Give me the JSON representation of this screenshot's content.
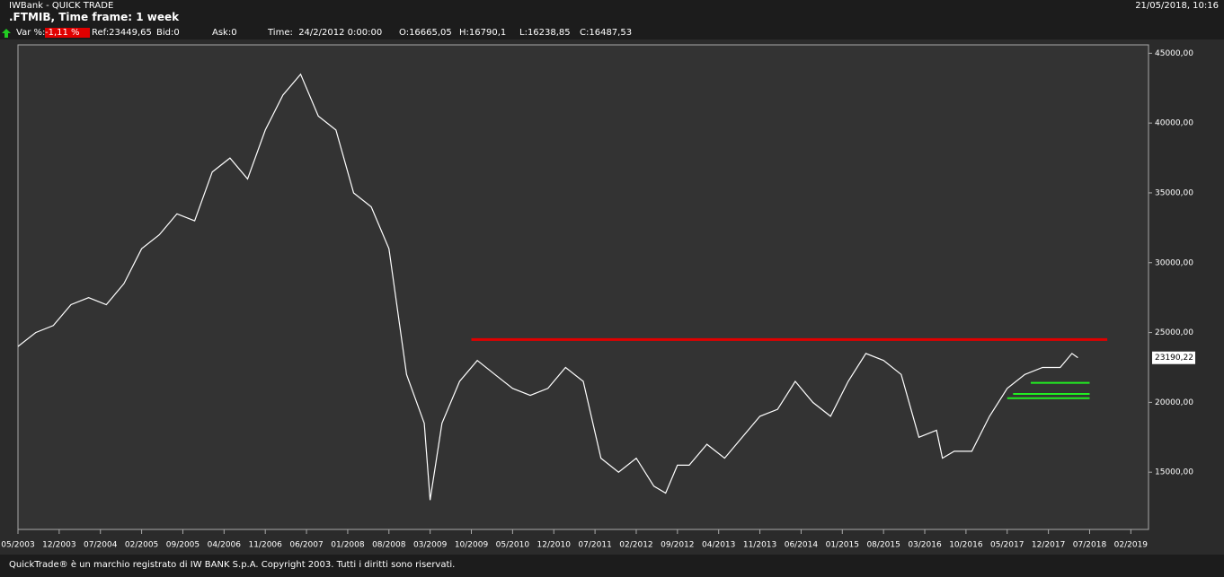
{
  "header": {
    "app": "IWBank - QUICK TRADE",
    "symbol": ".FTMIB, Time frame: 1 week",
    "datetime": "21/05/2018, 10:16",
    "info": [
      "Var %:",
      "-1,11 %",
      "Ref:23449,65",
      "Bid:0",
      "Ask:0",
      "Time:  24/2/2012 0:00:00",
      "O:16665,05",
      "H:16790,1",
      "L:16238,85",
      "C:16487,53"
    ]
  },
  "footer": "QuickTrade® è un marchio registrato di IW BANK S.p.A. Copyright 2003. Tutti i diritti sono riservati.",
  "chart_data": {
    "type": "line",
    "color": "#ffffff",
    "x": [
      "05/2003",
      "08/2003",
      "11/2003",
      "02/2004",
      "05/2004",
      "08/2004",
      "11/2004",
      "02/2005",
      "05/2005",
      "08/2005",
      "11/2005",
      "02/2006",
      "05/2006",
      "08/2006",
      "11/2006",
      "02/2007",
      "05/2007",
      "08/2007",
      "11/2007",
      "02/2008",
      "05/2008",
      "08/2008",
      "11/2008",
      "02/2009",
      "03/2009",
      "05/2009",
      "08/2009",
      "11/2009",
      "02/2010",
      "05/2010",
      "08/2010",
      "11/2010",
      "02/2011",
      "05/2011",
      "08/2011",
      "11/2011",
      "02/2012",
      "05/2012",
      "07/2012",
      "09/2012",
      "11/2012",
      "02/2013",
      "05/2013",
      "08/2013",
      "11/2013",
      "02/2014",
      "05/2014",
      "08/2014",
      "11/2014",
      "02/2015",
      "05/2015",
      "08/2015",
      "11/2015",
      "02/2016",
      "05/2016",
      "06/2016",
      "08/2016",
      "11/2016",
      "02/2017",
      "05/2017",
      "08/2017",
      "11/2017",
      "02/2018",
      "04/2018",
      "05/2018"
    ],
    "values": [
      24000,
      25000,
      25500,
      27000,
      27500,
      27000,
      28500,
      31000,
      32000,
      33500,
      33000,
      36500,
      37500,
      36000,
      39500,
      42000,
      43500,
      40500,
      39500,
      35000,
      34000,
      31000,
      22000,
      18500,
      13000,
      18500,
      21500,
      23000,
      22000,
      21000,
      20500,
      21000,
      22500,
      21500,
      16000,
      15000,
      16000,
      14000,
      13500,
      15500,
      15500,
      17000,
      16000,
      17500,
      19000,
      19500,
      21500,
      20000,
      19000,
      21500,
      23500,
      23000,
      22000,
      17500,
      18000,
      16000,
      16500,
      16500,
      19000,
      21000,
      22000,
      22500,
      22500,
      23500,
      23200
    ],
    "xlim": [
      "05/2003",
      "05/2019"
    ],
    "xticks": [
      "05/2003",
      "12/2003",
      "07/2004",
      "02/2005",
      "09/2005",
      "04/2006",
      "11/2006",
      "06/2007",
      "01/2008",
      "08/2008",
      "03/2009",
      "10/2009",
      "05/2010",
      "12/2010",
      "07/2011",
      "02/2012",
      "09/2012",
      "04/2013",
      "11/2013",
      "06/2014",
      "01/2015",
      "08/2015",
      "03/2016",
      "10/2016",
      "05/2017",
      "12/2017",
      "07/2018",
      "02/2019"
    ],
    "ylim": [
      10900,
      45600
    ],
    "yticks": [
      {
        "value": 15000,
        "label": "15000,00"
      },
      {
        "value": 20000,
        "label": "20000,00"
      },
      {
        "value": 25000,
        "label": "25000,00"
      },
      {
        "value": 30000,
        "label": "30000,00"
      },
      {
        "value": 35000,
        "label": "35000,00"
      },
      {
        "value": 40000,
        "label": "40000,00"
      },
      {
        "value": 45000,
        "label": "45000,00"
      }
    ],
    "last": {
      "value": 23190.22,
      "label": "23190,22"
    },
    "levels": [
      {
        "value": 24500,
        "color": "#e00000",
        "start": "10/2009",
        "end": "10/2018"
      },
      {
        "value": 21400,
        "color": "#22ee22",
        "start": "09/2017",
        "end": "07/2018"
      },
      {
        "value": 20600,
        "color": "#22ee22",
        "start": "06/2017",
        "end": "07/2018"
      },
      {
        "value": 20300,
        "color": "#22ee22",
        "start": "05/2017",
        "end": "07/2018"
      }
    ]
  }
}
